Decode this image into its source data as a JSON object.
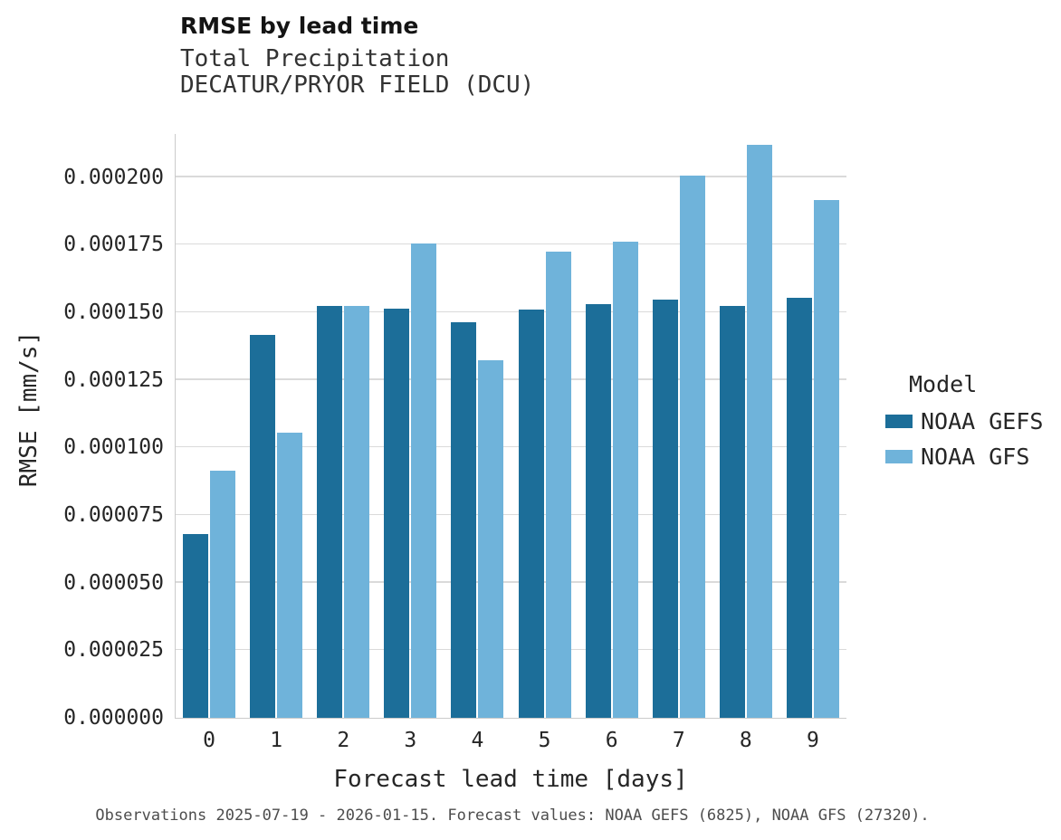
{
  "chart_data": {
    "type": "bar",
    "title": "RMSE by lead time",
    "subtitle_lines": [
      "Total Precipitation",
      "DECATUR/PRYOR FIELD (DCU)"
    ],
    "caption": "Observations 2025-07-19 - 2026-01-15. Forecast values: NOAA GEFS (6825), NOAA GFS (27320).",
    "xlabel": "Forecast lead time [days]",
    "ylabel": "RMSE [mm/s]",
    "categories": [
      0,
      1,
      2,
      3,
      4,
      5,
      6,
      7,
      8,
      9
    ],
    "series": [
      {
        "name": "NOAA GEFS",
        "color": "#1c6e99",
        "values": [
          6.8e-05,
          0.0001418,
          0.0001525,
          0.0001515,
          0.0001465,
          0.000151,
          0.000153,
          0.0001548,
          0.0001525,
          0.0001555
        ]
      },
      {
        "name": "NOAA GFS",
        "color": "#6fb3da",
        "values": [
          9.15e-05,
          0.0001055,
          0.0001525,
          0.0001755,
          0.0001322,
          0.0001725,
          0.0001763,
          0.0002005,
          0.000212,
          0.0001917
        ]
      }
    ],
    "ylim": [
      0,
      0.000216
    ],
    "yticks": [
      0.0,
      2.5e-05,
      5e-05,
      7.5e-05,
      0.0001,
      0.000125,
      0.00015,
      0.000175,
      0.0002
    ],
    "ytick_labels": [
      "0.000000",
      "0.000025",
      "0.000050",
      "0.000075",
      "0.000100",
      "0.000125",
      "0.000150",
      "0.000175",
      "0.000200"
    ],
    "grid": true,
    "legend_title": "Model",
    "legend_position": "right"
  }
}
